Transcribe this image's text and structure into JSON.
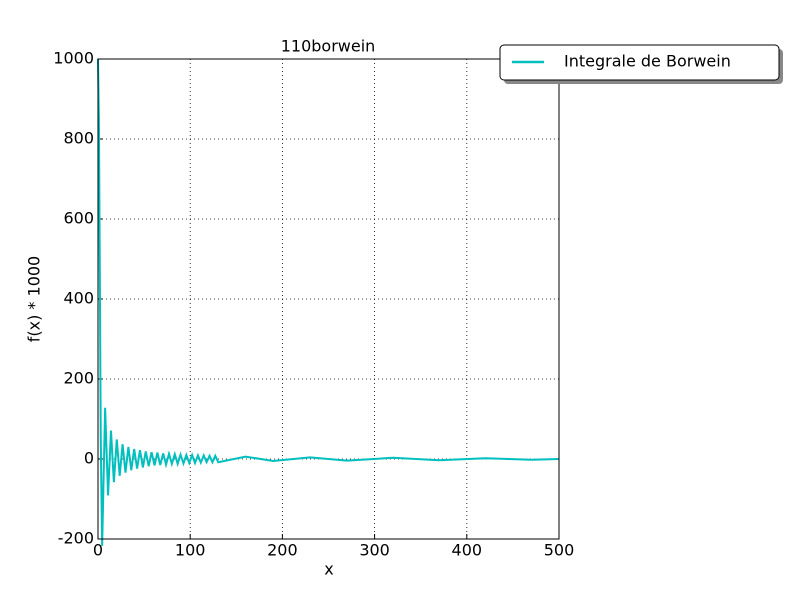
{
  "chart_data": {
    "type": "line",
    "title": "110borwein",
    "x_label": "x",
    "y_label": "f(x) * 1000",
    "series": [
      {
        "name": "Integrale de Borwein",
        "color": "#00bfbf",
        "x": [
          0,
          1,
          2,
          3,
          4.49,
          7.73,
          10.9,
          14.07,
          17.22,
          20.37,
          23.52,
          26.67,
          29.81,
          32.96,
          36.1,
          39.24,
          42.4,
          45.5,
          48.7,
          51.8,
          55.0,
          58.1,
          61.3,
          64.4,
          67.5,
          70.7,
          73.8,
          77.0,
          80.1,
          83.3,
          86.4,
          89.5,
          92.7,
          95.8,
          99.0,
          102.1,
          105.2,
          108.4,
          111.5,
          114.7,
          117.8,
          121.0,
          124.1,
          127.2,
          130.4,
          160,
          190,
          230,
          270,
          320,
          370,
          420,
          470,
          500
        ],
        "values": [
          1000,
          841,
          455,
          47,
          -217,
          128,
          -91,
          71,
          -58,
          49,
          -42,
          37,
          -34,
          30,
          -28,
          25,
          -24,
          22,
          -21,
          19,
          -18,
          17,
          -16,
          16,
          -15,
          14,
          -14,
          13,
          -12,
          12,
          -12,
          11,
          -11,
          10,
          -10,
          10,
          -10,
          9,
          -9,
          9,
          -8,
          8,
          -8,
          8,
          -8,
          6,
          -5,
          4,
          -4,
          3,
          -3,
          2,
          -2,
          0
        ]
      }
    ],
    "xlim": [
      0,
      500
    ],
    "xticks": [
      0,
      100,
      200,
      300,
      400,
      500
    ],
    "ylim": [
      -200,
      1000
    ],
    "yticks": [
      -200,
      0,
      200,
      400,
      600,
      800,
      1000
    ],
    "grid": true,
    "legend": "upper right"
  }
}
